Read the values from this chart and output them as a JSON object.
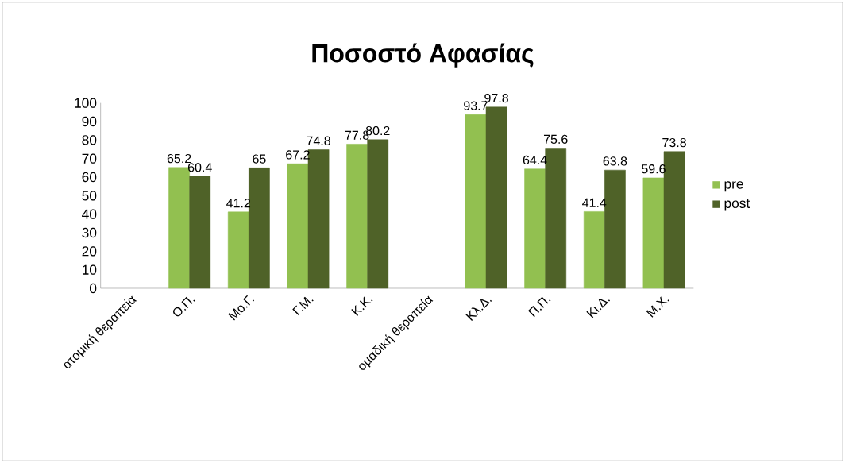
{
  "chart_data": {
    "type": "bar",
    "title": "Ποσοστό Αφασίας",
    "categories": [
      "ατομική θεραπεία",
      "Ο.Π.",
      "Μο.Γ.",
      "Γ.Μ.",
      "Κ.Κ.",
      "ομαδική θεραπεία",
      "Κλ.Δ.",
      "Π.Π.",
      "Κι.Δ.",
      "Μ.Χ."
    ],
    "series": [
      {
        "name": "pre",
        "color": "#92c050",
        "values": [
          null,
          65.2,
          41.2,
          67.2,
          77.8,
          null,
          93.7,
          64.4,
          41.4,
          59.6
        ]
      },
      {
        "name": "post",
        "color": "#4f6228",
        "values": [
          null,
          60.4,
          65,
          74.8,
          80.2,
          null,
          97.8,
          75.6,
          63.8,
          73.8
        ]
      }
    ],
    "ylim": [
      0,
      100
    ],
    "yticks": [
      0,
      10,
      20,
      30,
      40,
      50,
      60,
      70,
      80,
      90,
      100
    ],
    "data_labels": true,
    "legend": "right",
    "grid": false
  }
}
